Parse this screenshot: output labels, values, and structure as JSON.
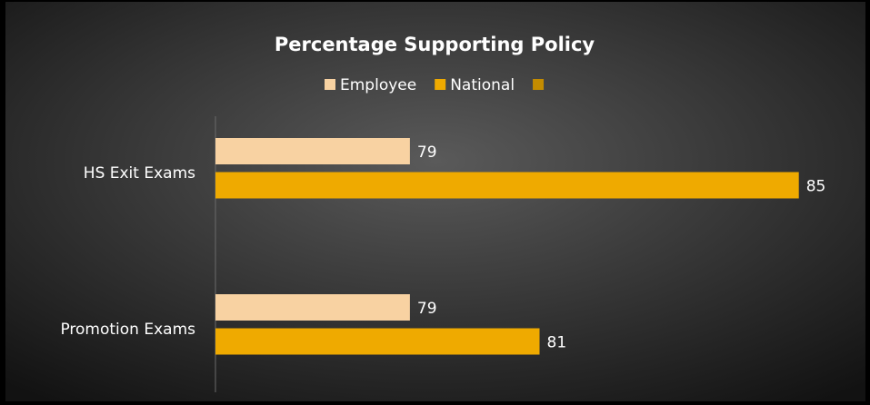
{
  "chart_data": {
    "type": "barh",
    "title": "Percentage Supporting Policy",
    "categories": [
      "HS Exit Exams",
      "Promotion Exams"
    ],
    "series": [
      {
        "name": "Employee",
        "color": "#f8d2a2",
        "values": [
          79,
          79
        ]
      },
      {
        "name": "National",
        "color": "#efaa00",
        "values": [
          85,
          81
        ]
      },
      {
        "name": null,
        "color": "#c48c00",
        "values": [
          null,
          null
        ]
      }
    ],
    "xlim": [
      76,
      86
    ],
    "legend": "top"
  }
}
